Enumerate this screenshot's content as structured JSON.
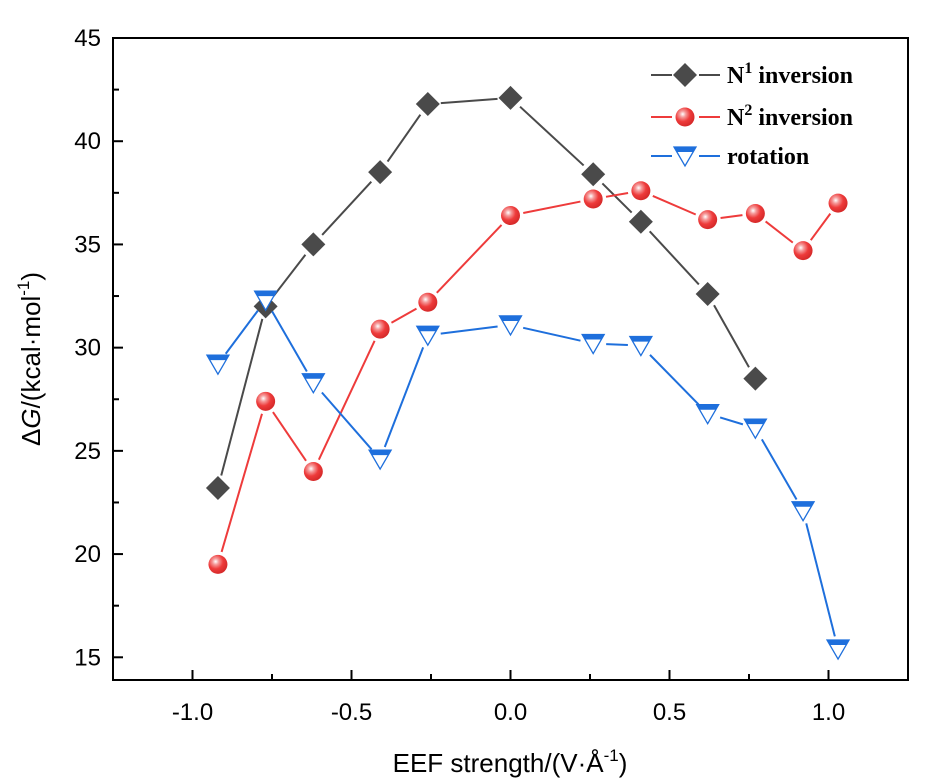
{
  "chart_data": {
    "type": "line",
    "title": "",
    "xlabel": "EEF strength/(V·Å",
    "xlabel_sup": "-1",
    "xlabel_close": ")",
    "ylabel_prefix": "Δ",
    "ylabel_italic": "G",
    "ylabel_rest": "/(kcal·mol",
    "ylabel_sup": "-1",
    "ylabel_close": ")",
    "xlim": [
      -1.25,
      1.25
    ],
    "ylim": [
      13.9,
      45
    ],
    "xticks": [
      -1.0,
      -0.5,
      0.0,
      0.5,
      1.0
    ],
    "xtick_labels": [
      "-1.0",
      "-0.5",
      "0.0",
      "0.5",
      "1.0"
    ],
    "yticks": [
      15,
      20,
      25,
      30,
      35,
      40,
      45
    ],
    "ytick_labels": [
      "15",
      "20",
      "25",
      "30",
      "35",
      "40",
      "45"
    ],
    "legend_position": "top-right",
    "grid": false,
    "series": [
      {
        "name": "N1 inversion",
        "legend_base": "N",
        "legend_sup": "1",
        "legend_rest": " inversion",
        "color": "#4a4a4a",
        "marker": "diamond",
        "x": [
          -0.92,
          -0.77,
          -0.62,
          -0.41,
          -0.26,
          0.0,
          0.26,
          0.41,
          0.62,
          0.77
        ],
        "y": [
          23.2,
          32.0,
          35.0,
          38.5,
          41.8,
          42.1,
          38.4,
          36.1,
          32.6,
          28.5
        ]
      },
      {
        "name": "N2 inversion",
        "legend_base": "N",
        "legend_sup": "2",
        "legend_rest": " inversion",
        "color": "#ee3b3b",
        "marker": "sphere",
        "x": [
          -0.92,
          -0.77,
          -0.62,
          -0.41,
          -0.26,
          0.0,
          0.26,
          0.41,
          0.62,
          0.77,
          0.92,
          1.03
        ],
        "y": [
          19.5,
          27.4,
          24.0,
          30.9,
          32.2,
          36.4,
          37.2,
          37.6,
          36.2,
          36.5,
          34.7,
          37.0
        ]
      },
      {
        "name": "rotation",
        "legend_base": "rotation",
        "legend_sup": "",
        "legend_rest": "",
        "color": "#1e6fdc",
        "marker": "triangle-down",
        "x": [
          -0.92,
          -0.77,
          -0.62,
          -0.41,
          -0.26,
          0.0,
          0.26,
          0.41,
          0.62,
          0.77,
          0.92,
          1.03
        ],
        "y": [
          29.2,
          32.3,
          28.3,
          24.6,
          30.6,
          31.1,
          30.2,
          30.1,
          26.8,
          26.1,
          22.1,
          15.4
        ]
      }
    ]
  }
}
